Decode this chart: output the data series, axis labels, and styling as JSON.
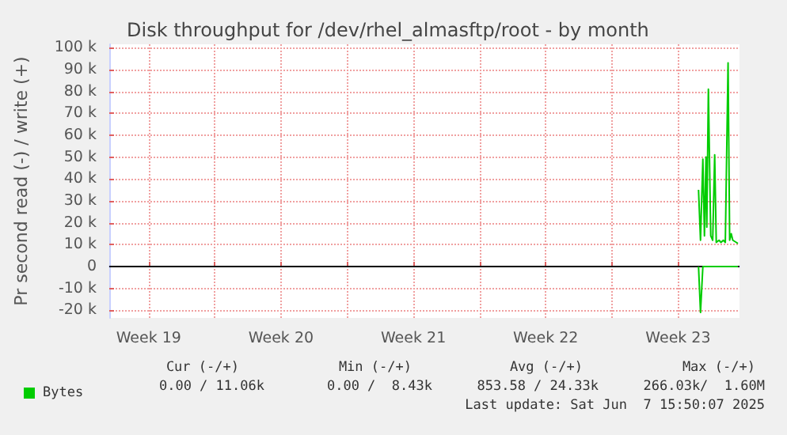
{
  "chart_data": {
    "type": "line",
    "title": "Disk throughput for /dev/rhel_almasftp/root - by month",
    "ylabel": "Pr second read (-) / write (+)",
    "series": [
      {
        "name": "Bytes",
        "color": "#00cc00",
        "x": [
          "2025-06-05T14:00",
          "2025-06-05T16:30",
          "2025-06-05T19:30",
          "2025-06-05T21:30",
          "2025-06-05T23:30",
          "2025-06-06T00:30",
          "2025-06-06T02:30",
          "2025-06-06T05:30",
          "2025-06-06T08:00",
          "2025-06-06T10:30",
          "2025-06-06T12:30",
          "2025-06-06T16:00",
          "2025-06-06T18:30",
          "2025-06-06T21:30",
          "2025-06-07T00:00",
          "2025-06-07T03:30",
          "2025-06-07T05:30",
          "2025-06-07T07:30",
          "2025-06-07T09:30",
          "2025-06-07T14:00",
          "2025-06-07T16:00"
        ],
        "values": [
          35000,
          12000,
          49000,
          14000,
          50000,
          18000,
          81000,
          14000,
          12000,
          51000,
          11000,
          12000,
          11000,
          12000,
          11000,
          93000,
          12000,
          15000,
          12000,
          11000,
          10500
        ]
      },
      {
        "color": "#00cc00",
        "x": [
          "2025-06-05T14:00",
          "2025-06-05T16:30",
          "2025-06-05T19:30",
          "2025-06-07T16:00"
        ],
        "values": [
          0,
          -21000,
          0,
          0
        ]
      }
    ],
    "xlim": [
      "2025-05-05T10:00",
      "2025-06-07T18:00"
    ],
    "xticks": [
      {
        "value": "2025-05-07T12:00",
        "label": "Week 19"
      },
      {
        "value": "2025-05-11",
        "label": null
      },
      {
        "value": "2025-05-14T12:00",
        "label": "Week 20"
      },
      {
        "value": "2025-05-18",
        "label": null
      },
      {
        "value": "2025-05-21T12:00",
        "label": "Week 21"
      },
      {
        "value": "2025-05-25",
        "label": null
      },
      {
        "value": "2025-05-28T12:00",
        "label": "Week 22"
      },
      {
        "value": "2025-06-01",
        "label": null
      },
      {
        "value": "2025-06-04T12:00",
        "label": "Week 23"
      }
    ],
    "ylim": [
      -23500,
      101500
    ],
    "yticks": [
      {
        "value": -20000,
        "label": "-20 k"
      },
      {
        "value": -10000,
        "label": "-10 k"
      },
      0,
      {
        "value": 10000,
        "label": "10 k"
      },
      {
        "value": 20000,
        "label": "20 k"
      },
      {
        "value": 30000,
        "label": "30 k"
      },
      {
        "value": 40000,
        "label": "40 k"
      },
      {
        "value": 50000,
        "label": "50 k"
      },
      {
        "value": 60000,
        "label": "60 k"
      },
      {
        "value": 70000,
        "label": "70 k"
      },
      {
        "value": 80000,
        "label": "80 k"
      },
      {
        "value": 90000,
        "label": "90 k"
      },
      {
        "value": 100000,
        "label": "100 k"
      }
    ],
    "ref_lines": [
      {
        "axis": "y",
        "value": 0,
        "label": null,
        "color": "#000000"
      }
    ],
    "grid": true,
    "legend": "bottom left",
    "annotations": [
      "Cur (-/+)",
      "Min (-/+)",
      "Avg (-/+)",
      "Max (-/+)",
      "0.00 / 11.06k",
      "0.00 /  8.43k",
      "853.58 / 24.33k",
      "266.03k/  1.60M",
      "Last update: Sat Jun  7 15:50:07 2025"
    ]
  }
}
